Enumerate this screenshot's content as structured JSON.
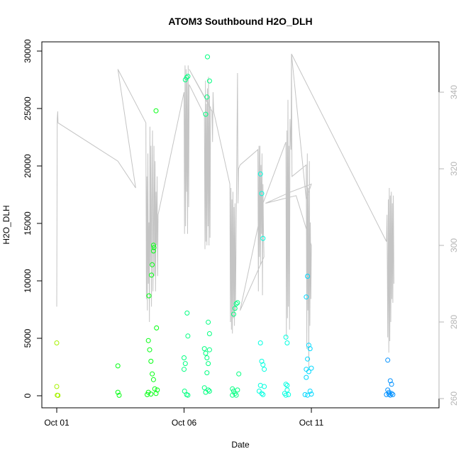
{
  "chart_data": {
    "type": "scatter",
    "title": "ATOM3 Southbound H2O_DLH",
    "xlabel": "Date",
    "ylabel": "H2O_DLH",
    "x_ticks": [
      {
        "label": "Oct 01",
        "value": 1
      },
      {
        "label": "Oct 06",
        "value": 6
      },
      {
        "label": "Oct 11",
        "value": 11
      }
    ],
    "xlim": [
      1,
      15.4
    ],
    "y_left": {
      "lim": [
        0,
        30000
      ],
      "ticks": [
        0,
        5000,
        10000,
        15000,
        20000,
        25000,
        30000
      ]
    },
    "y_right": {
      "lim": [
        260,
        350
      ],
      "ticks": [
        260,
        280,
        300,
        320,
        340
      ],
      "color": "#b4b4b4"
    },
    "grid": false,
    "legend": "none",
    "scatter_series": {
      "name": "H2O_DLH",
      "marker": "open-circle",
      "color_by": "date",
      "colors": [
        "#a6f200",
        "#00ff10",
        "#00ff80",
        "#00ffe0",
        "#00d8ff",
        "#0090ff"
      ],
      "points": [
        {
          "x": 1.0,
          "y": 4600
        },
        {
          "x": 1.0,
          "y": 800
        },
        {
          "x": 1.02,
          "y": 50
        },
        {
          "x": 1.05,
          "y": 30
        },
        {
          "x": 3.4,
          "y": 2600
        },
        {
          "x": 3.4,
          "y": 300
        },
        {
          "x": 3.45,
          "y": 40
        },
        {
          "x": 4.6,
          "y": 4800
        },
        {
          "x": 4.65,
          "y": 4000
        },
        {
          "x": 4.7,
          "y": 3000
        },
        {
          "x": 4.75,
          "y": 1900
        },
        {
          "x": 4.8,
          "y": 1400
        },
        {
          "x": 4.85,
          "y": 600
        },
        {
          "x": 4.6,
          "y": 300
        },
        {
          "x": 4.7,
          "y": 150
        },
        {
          "x": 4.9,
          "y": 200
        },
        {
          "x": 4.62,
          "y": 8700
        },
        {
          "x": 4.72,
          "y": 10500
        },
        {
          "x": 4.75,
          "y": 11400
        },
        {
          "x": 4.8,
          "y": 12600
        },
        {
          "x": 4.82,
          "y": 12900
        },
        {
          "x": 4.8,
          "y": 13100
        },
        {
          "x": 4.9,
          "y": 24800
        },
        {
          "x": 4.92,
          "y": 5900
        },
        {
          "x": 4.95,
          "y": 500
        },
        {
          "x": 4.55,
          "y": 100
        },
        {
          "x": 6.0,
          "y": 3300
        },
        {
          "x": 6.05,
          "y": 2800
        },
        {
          "x": 6.0,
          "y": 2300
        },
        {
          "x": 6.02,
          "y": 400
        },
        {
          "x": 6.1,
          "y": 100
        },
        {
          "x": 6.15,
          "y": 50
        },
        {
          "x": 6.05,
          "y": 27500
        },
        {
          "x": 6.1,
          "y": 27700
        },
        {
          "x": 6.15,
          "y": 27800
        },
        {
          "x": 6.12,
          "y": 7200
        },
        {
          "x": 6.15,
          "y": 5200
        },
        {
          "x": 6.8,
          "y": 4100
        },
        {
          "x": 6.85,
          "y": 3700
        },
        {
          "x": 6.9,
          "y": 3300
        },
        {
          "x": 6.95,
          "y": 2800
        },
        {
          "x": 7.0,
          "y": 4000
        },
        {
          "x": 6.9,
          "y": 2000
        },
        {
          "x": 6.8,
          "y": 700
        },
        {
          "x": 6.85,
          "y": 300
        },
        {
          "x": 6.95,
          "y": 500
        },
        {
          "x": 7.0,
          "y": 400
        },
        {
          "x": 6.85,
          "y": 24500
        },
        {
          "x": 6.9,
          "y": 26000
        },
        {
          "x": 6.92,
          "y": 29500
        },
        {
          "x": 7.0,
          "y": 27400
        },
        {
          "x": 6.95,
          "y": 6400
        },
        {
          "x": 7.0,
          "y": 5400
        },
        {
          "x": 7.95,
          "y": 7100
        },
        {
          "x": 8.0,
          "y": 7600
        },
        {
          "x": 8.05,
          "y": 8000
        },
        {
          "x": 8.1,
          "y": 8100
        },
        {
          "x": 7.9,
          "y": 600
        },
        {
          "x": 7.95,
          "y": 400
        },
        {
          "x": 8.0,
          "y": 200
        },
        {
          "x": 8.05,
          "y": 50
        },
        {
          "x": 8.1,
          "y": 500
        },
        {
          "x": 7.9,
          "y": 50
        },
        {
          "x": 8.15,
          "y": 1900
        },
        {
          "x": 9.0,
          "y": 4600
        },
        {
          "x": 9.05,
          "y": 3000
        },
        {
          "x": 9.1,
          "y": 2700
        },
        {
          "x": 9.15,
          "y": 2300
        },
        {
          "x": 9.0,
          "y": 900
        },
        {
          "x": 9.15,
          "y": 800
        },
        {
          "x": 8.95,
          "y": 400
        },
        {
          "x": 9.05,
          "y": 200
        },
        {
          "x": 9.1,
          "y": 100
        },
        {
          "x": 9.0,
          "y": 19300
        },
        {
          "x": 9.05,
          "y": 17600
        },
        {
          "x": 9.1,
          "y": 13700
        },
        {
          "x": 10.0,
          "y": 5100
        },
        {
          "x": 10.05,
          "y": 4600
        },
        {
          "x": 10.0,
          "y": 1000
        },
        {
          "x": 10.05,
          "y": 900
        },
        {
          "x": 10.05,
          "y": 500
        },
        {
          "x": 9.95,
          "y": 200
        },
        {
          "x": 10.1,
          "y": 100
        },
        {
          "x": 10.0,
          "y": 50
        },
        {
          "x": 10.8,
          "y": 8600
        },
        {
          "x": 10.85,
          "y": 10400
        },
        {
          "x": 10.9,
          "y": 4400
        },
        {
          "x": 10.95,
          "y": 4100
        },
        {
          "x": 10.8,
          "y": 2300
        },
        {
          "x": 10.85,
          "y": 3200
        },
        {
          "x": 10.9,
          "y": 2100
        },
        {
          "x": 11.0,
          "y": 2400
        },
        {
          "x": 10.8,
          "y": 1600
        },
        {
          "x": 10.75,
          "y": 100
        },
        {
          "x": 10.85,
          "y": 50
        },
        {
          "x": 10.95,
          "y": 400
        },
        {
          "x": 11.0,
          "y": 150
        },
        {
          "x": 14.0,
          "y": 3100
        },
        {
          "x": 14.1,
          "y": 1300
        },
        {
          "x": 14.15,
          "y": 1000
        },
        {
          "x": 14.0,
          "y": 500
        },
        {
          "x": 14.05,
          "y": 300
        },
        {
          "x": 13.95,
          "y": 100
        },
        {
          "x": 14.1,
          "y": 50
        },
        {
          "x": 14.15,
          "y": 200
        },
        {
          "x": 14.2,
          "y": 100
        },
        {
          "x": 14.05,
          "y": 150
        }
      ]
    },
    "line_series": {
      "name": "right-axis trace",
      "axis": "right",
      "color": "#c4c4c4",
      "path": [
        [
          1.0,
          284
        ],
        [
          1.02,
          333
        ],
        [
          1.04,
          335
        ],
        [
          1.05,
          332
        ],
        [
          3.4,
          322
        ],
        [
          4.1,
          315
        ],
        [
          3.4,
          346
        ],
        [
          4.5,
          332
        ],
        [
          4.52,
          286
        ],
        [
          4.54,
          318
        ],
        [
          4.56,
          283
        ],
        [
          4.58,
          324
        ],
        [
          4.6,
          290
        ],
        [
          4.62,
          306
        ],
        [
          4.64,
          280
        ],
        [
          4.66,
          331
        ],
        [
          4.68,
          295
        ],
        [
          4.7,
          326
        ],
        [
          4.72,
          284
        ],
        [
          4.74,
          312
        ],
        [
          4.76,
          330
        ],
        [
          4.78,
          288
        ],
        [
          4.8,
          302
        ],
        [
          4.82,
          326
        ],
        [
          4.84,
          292
        ],
        [
          4.86,
          322
        ],
        [
          4.88,
          288
        ],
        [
          4.9,
          314
        ],
        [
          4.92,
          300
        ],
        [
          4.94,
          318
        ],
        [
          4.96,
          292
        ],
        [
          4.98,
          308
        ],
        [
          6.0,
          340
        ],
        [
          6.02,
          303
        ],
        [
          6.04,
          347
        ],
        [
          6.06,
          305
        ],
        [
          6.08,
          346
        ],
        [
          6.1,
          314
        ],
        [
          6.12,
          344
        ],
        [
          6.14,
          303
        ],
        [
          6.16,
          347
        ],
        [
          6.18,
          310
        ],
        [
          6.2,
          342
        ],
        [
          6.8,
          334
        ],
        [
          6.82,
          299
        ],
        [
          6.84,
          343
        ],
        [
          6.86,
          301
        ],
        [
          6.88,
          337
        ],
        [
          6.9,
          300
        ],
        [
          6.92,
          341
        ],
        [
          6.94,
          305
        ],
        [
          6.96,
          344
        ],
        [
          6.98,
          300
        ],
        [
          7.0,
          339
        ],
        [
          7.02,
          302
        ],
        [
          7.04,
          336
        ],
        [
          6.2,
          346
        ],
        [
          7.1,
          335
        ],
        [
          7.12,
          327
        ],
        [
          7.14,
          340
        ],
        [
          7.16,
          335
        ],
        [
          7.8,
          316
        ],
        [
          7.82,
          280
        ],
        [
          7.84,
          315
        ],
        [
          7.86,
          278
        ],
        [
          7.88,
          312
        ],
        [
          7.9,
          277
        ],
        [
          7.92,
          314
        ],
        [
          7.94,
          281
        ],
        [
          7.96,
          310
        ],
        [
          7.98,
          279
        ],
        [
          8.0,
          311
        ],
        [
          8.02,
          283
        ],
        [
          8.1,
          345
        ],
        [
          8.12,
          311
        ],
        [
          8.14,
          320
        ],
        [
          8.2,
          321
        ],
        [
          8.9,
          325
        ],
        [
          8.92,
          288
        ],
        [
          8.94,
          326
        ],
        [
          8.96,
          297
        ],
        [
          8.98,
          326
        ],
        [
          9.0,
          295
        ],
        [
          9.02,
          321
        ],
        [
          9.04,
          303
        ],
        [
          9.06,
          324
        ],
        [
          9.08,
          287
        ],
        [
          9.1,
          316
        ],
        [
          9.12,
          304
        ],
        [
          9.14,
          297
        ],
        [
          8.2,
          283
        ],
        [
          9.1,
          311
        ],
        [
          10.0,
          327
        ],
        [
          10.02,
          276
        ],
        [
          10.04,
          330
        ],
        [
          10.06,
          281
        ],
        [
          10.08,
          338
        ],
        [
          10.1,
          284
        ],
        [
          10.12,
          326
        ],
        [
          10.14,
          278
        ],
        [
          10.16,
          333
        ],
        [
          10.2,
          325
        ],
        [
          10.22,
          350
        ],
        [
          10.24,
          318
        ],
        [
          10.8,
          321
        ],
        [
          10.82,
          273
        ],
        [
          10.84,
          324
        ],
        [
          10.86,
          283
        ],
        [
          10.88,
          315
        ],
        [
          10.9,
          268
        ],
        [
          10.92,
          322
        ],
        [
          10.94,
          279
        ],
        [
          10.96,
          306
        ],
        [
          10.98,
          286
        ],
        [
          11.0,
          300
        ],
        [
          10.4,
          313
        ],
        [
          9.2,
          311
        ],
        [
          10.2,
          314
        ],
        [
          11.0,
          316
        ],
        [
          10.8,
          312
        ],
        [
          10.22,
          350
        ],
        [
          13.95,
          301
        ],
        [
          13.97,
          308
        ],
        [
          14.0,
          276
        ],
        [
          14.02,
          312
        ],
        [
          14.04,
          272
        ],
        [
          14.06,
          315
        ],
        [
          14.08,
          275
        ],
        [
          14.1,
          313
        ],
        [
          14.12,
          280
        ],
        [
          14.14,
          314
        ],
        [
          14.16,
          286
        ],
        [
          14.18,
          311
        ],
        [
          14.2,
          285
        ],
        [
          14.22,
          313
        ],
        [
          14.24,
          290
        ]
      ]
    }
  }
}
